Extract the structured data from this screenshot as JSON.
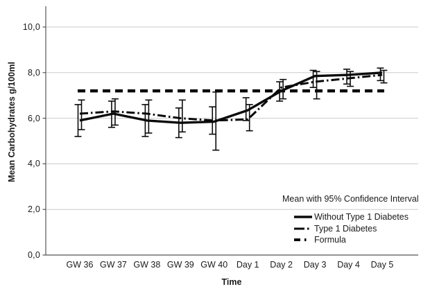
{
  "chart_data": {
    "type": "line",
    "title": "",
    "xlabel": "Time",
    "ylabel": "Mean Carbohydrates g/100ml",
    "categories": [
      "GW 36",
      "GW 37",
      "GW 38",
      "GW 39",
      "GW 40",
      "Day 1",
      "Day 2",
      "Day 3",
      "Day 4",
      "Day 5"
    ],
    "y_ticks": [
      "0,0",
      "2,0",
      "4,0",
      "6,0",
      "8,0",
      "10,0"
    ],
    "y_tick_values": [
      0,
      2,
      4,
      6,
      8,
      10
    ],
    "ylim": [
      0,
      10.9
    ],
    "grid": true,
    "decimal_separator": ",",
    "error_bars": "95% confidence interval",
    "legend": {
      "title": "Mean with 95% Confidence Interval",
      "position": "lower-right"
    },
    "series": [
      {
        "name": "Without Type 1 Diabetes",
        "style": "solid",
        "values": [
          5.9,
          6.2,
          5.9,
          5.8,
          5.85,
          6.35,
          7.2,
          7.85,
          7.9,
          8.0
        ],
        "ci_low": [
          5.2,
          5.6,
          5.2,
          5.15,
          5.3,
          5.9,
          6.75,
          7.35,
          7.5,
          7.65
        ],
        "ci_high": [
          6.6,
          6.75,
          6.6,
          6.45,
          6.5,
          6.9,
          7.6,
          8.1,
          8.15,
          8.2
        ]
      },
      {
        "name": "Type 1 Diabetes",
        "style": "dash-dot",
        "values": [
          6.2,
          6.3,
          6.2,
          6.0,
          5.9,
          5.95,
          7.35,
          7.6,
          7.75,
          7.9
        ],
        "ci_low": [
          5.5,
          5.7,
          5.35,
          5.4,
          4.6,
          5.45,
          6.85,
          6.85,
          7.4,
          7.55
        ],
        "ci_high": [
          6.8,
          6.85,
          6.8,
          6.8,
          7.15,
          6.6,
          7.7,
          8.05,
          8.05,
          8.1
        ]
      },
      {
        "name": "Formula",
        "style": "dashed",
        "values": [
          7.2,
          7.2,
          7.2,
          7.2,
          7.2,
          7.2,
          7.2,
          7.2,
          7.2,
          7.2
        ]
      }
    ],
    "colors": {
      "line": "#0a0a0a",
      "grid": "#cbcbcb",
      "axis": "#555555",
      "text": "#1a1a1a",
      "background": "#ffffff"
    }
  }
}
